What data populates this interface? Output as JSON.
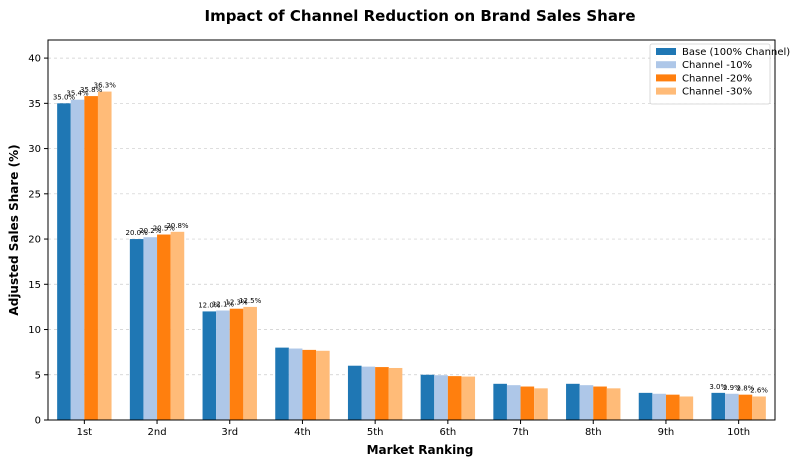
{
  "chart_data": {
    "type": "bar",
    "title": "Impact of Channel Reduction on Brand Sales Share",
    "xlabel": "Market Ranking",
    "ylabel": "Adjusted Sales Share (%)",
    "ylim": [
      0,
      42
    ],
    "yticks": [
      0,
      5,
      10,
      15,
      20,
      25,
      30,
      35,
      40
    ],
    "grid": "horizontal dashed",
    "legend_position": "top-right",
    "categories": [
      "1st",
      "2nd",
      "3rd",
      "4th",
      "5th",
      "6th",
      "7th",
      "8th",
      "9th",
      "10th"
    ],
    "series": [
      {
        "name": "Base (100% Channel)",
        "color": "#1f77b4",
        "values": [
          35.0,
          20.0,
          12.0,
          8.0,
          6.0,
          5.0,
          4.0,
          4.0,
          3.0,
          3.0
        ]
      },
      {
        "name": "Channel -10%",
        "color": "#aec7e8",
        "values": [
          35.4,
          20.2,
          12.1,
          7.9,
          5.9,
          4.95,
          3.85,
          3.85,
          2.9,
          2.9
        ]
      },
      {
        "name": "Channel -20%",
        "color": "#ff7f0e",
        "values": [
          35.8,
          20.5,
          12.3,
          7.75,
          5.85,
          4.85,
          3.7,
          3.7,
          2.8,
          2.8
        ]
      },
      {
        "name": "Channel -30%",
        "color": "#ffbb78",
        "values": [
          36.3,
          20.8,
          12.5,
          7.65,
          5.75,
          4.8,
          3.5,
          3.5,
          2.6,
          2.6
        ]
      }
    ],
    "data_labels": [
      {
        "category_index": 0,
        "labels": [
          "35.0%",
          "35.4%",
          "35.8%",
          "36.3%"
        ]
      },
      {
        "category_index": 1,
        "labels": [
          "20.0%",
          "20.2%",
          "20.5%",
          "20.8%"
        ]
      },
      {
        "category_index": 2,
        "labels": [
          "12.0%",
          "12.1%",
          "12.3%",
          "12.5%"
        ]
      },
      {
        "category_index": 9,
        "labels": [
          "3.0%",
          "2.9%",
          "2.8%",
          "2.6%"
        ]
      }
    ]
  }
}
